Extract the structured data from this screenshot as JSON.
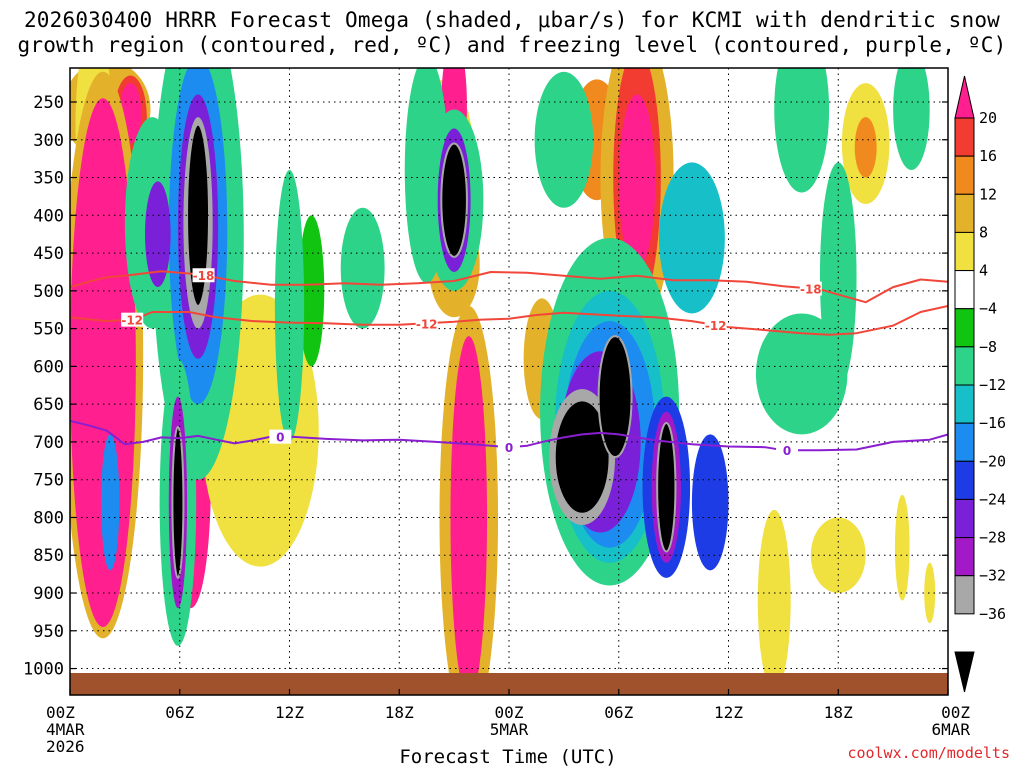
{
  "chart_data": {
    "type": "heatmap",
    "title_line1": "2026030400 HRRR Forecast Omega (shaded, μbar/s) for KCMI with dendritic snow",
    "title_line2": "growth region (contoured, red, ºC) and freezing level (contoured, purple, ºC)",
    "xlabel": "Forecast Time (UTC)",
    "ylabel": "",
    "x_range_hours": [
      0,
      48
    ],
    "y_range_hpa": [
      205,
      1035
    ],
    "x_ticks": [
      {
        "h": 0,
        "label": "00Z",
        "sub1": "4MAR",
        "sub2": "2026"
      },
      {
        "h": 6,
        "label": "06Z",
        "sub1": "",
        "sub2": ""
      },
      {
        "h": 12,
        "label": "12Z",
        "sub1": "",
        "sub2": ""
      },
      {
        "h": 18,
        "label": "18Z",
        "sub1": "",
        "sub2": ""
      },
      {
        "h": 24,
        "label": "00Z",
        "sub1": "5MAR",
        "sub2": ""
      },
      {
        "h": 30,
        "label": "06Z",
        "sub1": "",
        "sub2": ""
      },
      {
        "h": 36,
        "label": "12Z",
        "sub1": "",
        "sub2": ""
      },
      {
        "h": 42,
        "label": "18Z",
        "sub1": "",
        "sub2": ""
      },
      {
        "h": 48,
        "label": "00Z",
        "sub1": "6MAR",
        "sub2": ""
      }
    ],
    "y_ticks": [
      250,
      300,
      350,
      400,
      450,
      500,
      550,
      600,
      650,
      700,
      750,
      800,
      850,
      900,
      950,
      1000
    ],
    "colorbar": {
      "labels": [
        "20",
        "16",
        "12",
        "8",
        "4",
        "−4",
        "−8",
        "−12",
        "−16",
        "−20",
        "−24",
        "−28",
        "−32",
        "−36"
      ],
      "colors": [
        "#ff1f8e",
        "#f23c32",
        "#f08a1e",
        "#e3b12a",
        "#f0e040",
        "#ffffff",
        "#11c411",
        "#2ed38a",
        "#17c0c8",
        "#1d8cf0",
        "#1d3ce6",
        "#7a20d8",
        "#a21ac8",
        "#a8a8a8",
        "#000000"
      ]
    },
    "series": [
      {
        "name": "-18 °C isotherm",
        "color": "#f0473a",
        "points": [
          [
            0,
            495
          ],
          [
            1,
            488
          ],
          [
            2,
            482
          ],
          [
            3,
            480
          ],
          [
            5,
            474
          ],
          [
            7,
            478
          ],
          [
            9,
            487
          ],
          [
            11,
            492
          ],
          [
            13,
            492
          ],
          [
            15,
            490
          ],
          [
            17,
            492
          ],
          [
            19,
            490
          ],
          [
            21,
            487
          ],
          [
            23,
            475
          ],
          [
            25,
            476
          ],
          [
            27,
            480
          ],
          [
            29,
            484
          ],
          [
            31,
            480
          ],
          [
            33,
            486
          ],
          [
            35,
            486
          ],
          [
            37,
            488
          ],
          [
            39,
            494
          ],
          [
            41,
            498
          ],
          [
            42,
            505
          ],
          [
            43.5,
            515
          ],
          [
            45,
            495
          ],
          [
            46.5,
            485
          ],
          [
            48,
            488
          ]
        ],
        "labels": [
          {
            "h": 7.3,
            "text": "-18"
          },
          {
            "h": 40.5,
            "text": "-18"
          }
        ]
      },
      {
        "name": "-12 °C isotherm",
        "color": "#f0473a",
        "points": [
          [
            0,
            535
          ],
          [
            2,
            540
          ],
          [
            3.5,
            538
          ],
          [
            4.5,
            528
          ],
          [
            6.5,
            528
          ],
          [
            8,
            535
          ],
          [
            10,
            540
          ],
          [
            12,
            542
          ],
          [
            14,
            543
          ],
          [
            16,
            545
          ],
          [
            18,
            545
          ],
          [
            21,
            541
          ],
          [
            22.5,
            538
          ],
          [
            24,
            537
          ],
          [
            25.5,
            532
          ],
          [
            27,
            529
          ],
          [
            28.5,
            531
          ],
          [
            30,
            533
          ],
          [
            32,
            535
          ],
          [
            34,
            540
          ],
          [
            36,
            548
          ],
          [
            38,
            552
          ],
          [
            40,
            556
          ],
          [
            41.5,
            558
          ],
          [
            43,
            556
          ],
          [
            45,
            546
          ],
          [
            46.5,
            528
          ],
          [
            48,
            520
          ]
        ],
        "labels": [
          {
            "h": 3.4,
            "text": "-12"
          },
          {
            "h": 19.5,
            "text": "-12"
          },
          {
            "h": 35.3,
            "text": "-12"
          }
        ]
      },
      {
        "name": "0 °C isotherm (freezing level)",
        "color": "#8a1ed0",
        "points": [
          [
            0,
            672
          ],
          [
            1,
            678
          ],
          [
            2,
            685
          ],
          [
            3,
            703
          ],
          [
            4,
            700
          ],
          [
            5,
            694
          ],
          [
            6,
            695
          ],
          [
            7,
            692
          ],
          [
            8,
            697
          ],
          [
            9,
            702
          ],
          [
            10,
            698
          ],
          [
            11,
            693
          ],
          [
            12,
            693
          ],
          [
            14,
            696
          ],
          [
            16,
            698
          ],
          [
            18,
            697
          ],
          [
            20,
            700
          ],
          [
            22,
            703
          ],
          [
            24,
            707
          ],
          [
            25,
            705
          ],
          [
            26,
            699
          ],
          [
            27,
            694
          ],
          [
            28,
            690
          ],
          [
            29,
            688
          ],
          [
            30,
            690
          ],
          [
            31,
            694
          ],
          [
            32,
            698
          ],
          [
            34,
            703
          ],
          [
            36,
            706
          ],
          [
            38,
            707
          ],
          [
            39,
            711
          ],
          [
            41,
            711
          ],
          [
            43,
            710
          ],
          [
            45,
            700
          ],
          [
            47,
            697
          ],
          [
            48,
            690
          ]
        ],
        "labels": [
          {
            "h": 11.5,
            "text": "0"
          },
          {
            "h": 24,
            "text": "0"
          },
          {
            "h": 39.2,
            "text": "0"
          }
        ]
      }
    ],
    "omega_cells": [
      {
        "h": 2.0,
        "p": 260,
        "rx": 2.4,
        "rp": 65,
        "v": 8
      },
      {
        "h": 3.3,
        "p": 270,
        "rx": 0.9,
        "rp": 55,
        "v": 16
      },
      {
        "h": 3.3,
        "p": 265,
        "rx": 0.6,
        "rp": 40,
        "v": 20
      },
      {
        "h": 1.3,
        "p": 280,
        "rx": 1.0,
        "rp": 130,
        "v": 4
      },
      {
        "h": 1.8,
        "p": 585,
        "rx": 2.2,
        "rp": 375,
        "v": 8
      },
      {
        "h": 1.8,
        "p": 595,
        "rx": 1.8,
        "rp": 350,
        "v": 20
      },
      {
        "h": 6.6,
        "p": 755,
        "rx": 1.1,
        "rp": 165,
        "v": 20
      },
      {
        "h": 10.4,
        "p": 685,
        "rx": 3.2,
        "rp": 180,
        "v": 4
      },
      {
        "h": 13.2,
        "p": 500,
        "rx": 0.7,
        "rp": 100,
        "v": -4
      },
      {
        "h": 20.5,
        "p": 330,
        "rx": 1.6,
        "rp": 110,
        "v": 4
      },
      {
        "h": 21.0,
        "p": 465,
        "rx": 1.4,
        "rp": 70,
        "v": 8
      },
      {
        "h": 21.8,
        "p": 800,
        "rx": 1.6,
        "rp": 280,
        "v": 8
      },
      {
        "h": 21.8,
        "p": 800,
        "rx": 1.0,
        "rp": 240,
        "v": 20
      },
      {
        "h": 21.0,
        "p": 255,
        "rx": 0.7,
        "rp": 90,
        "v": 20
      },
      {
        "h": 25.8,
        "p": 590,
        "rx": 1.0,
        "rp": 80,
        "v": 8
      },
      {
        "h": 28.8,
        "p": 300,
        "rx": 1.4,
        "rp": 80,
        "v": 12
      },
      {
        "h": 31.0,
        "p": 350,
        "rx": 2.0,
        "rp": 200,
        "v": 8
      },
      {
        "h": 31.0,
        "p": 350,
        "rx": 1.3,
        "rp": 170,
        "v": 16
      },
      {
        "h": 31.0,
        "p": 355,
        "rx": 1.0,
        "rp": 115,
        "v": 20
      },
      {
        "h": 38.5,
        "p": 910,
        "rx": 0.9,
        "rp": 120,
        "v": 4
      },
      {
        "h": 42.0,
        "p": 850,
        "rx": 1.5,
        "rp": 50,
        "v": 4
      },
      {
        "h": 43.5,
        "p": 305,
        "rx": 1.3,
        "rp": 80,
        "v": 4
      },
      {
        "h": 43.5,
        "p": 310,
        "rx": 0.6,
        "rp": 40,
        "v": 12
      },
      {
        "h": 45.5,
        "p": 840,
        "rx": 0.4,
        "rp": 70,
        "v": 4
      },
      {
        "h": 47.0,
        "p": 900,
        "rx": 0.3,
        "rp": 40,
        "v": 4
      },
      {
        "h": 4.5,
        "p": 410,
        "rx": 1.5,
        "rp": 140,
        "v": -8
      },
      {
        "h": 7.0,
        "p": 430,
        "rx": 2.5,
        "rp": 320,
        "v": -8
      },
      {
        "h": 7.0,
        "p": 420,
        "rx": 1.6,
        "rp": 230,
        "v": -16
      },
      {
        "h": 7.0,
        "p": 415,
        "rx": 1.1,
        "rp": 175,
        "v": -24
      },
      {
        "h": 7.0,
        "p": 410,
        "rx": 0.8,
        "rp": 140,
        "v": -32
      },
      {
        "h": 7.0,
        "p": 400,
        "rx": 0.6,
        "rp": 120,
        "v": -36
      },
      {
        "h": 4.8,
        "p": 425,
        "rx": 0.7,
        "rp": 70,
        "v": -24
      },
      {
        "h": 5.9,
        "p": 780,
        "rx": 1.0,
        "rp": 190,
        "v": -8
      },
      {
        "h": 5.9,
        "p": 780,
        "rx": 0.5,
        "rp": 140,
        "v": -28
      },
      {
        "h": 5.9,
        "p": 780,
        "rx": 0.3,
        "rp": 100,
        "v": -36
      },
      {
        "h": 2.2,
        "p": 780,
        "rx": 0.5,
        "rp": 90,
        "v": -16
      },
      {
        "h": 12.0,
        "p": 520,
        "rx": 0.8,
        "rp": 180,
        "v": -8
      },
      {
        "h": 16.0,
        "p": 470,
        "rx": 1.2,
        "rp": 80,
        "v": -8
      },
      {
        "h": 19.5,
        "p": 340,
        "rx": 1.2,
        "rp": 150,
        "v": -8
      },
      {
        "h": 21.0,
        "p": 380,
        "rx": 1.6,
        "rp": 120,
        "v": -8
      },
      {
        "h": 21.0,
        "p": 380,
        "rx": 0.9,
        "rp": 95,
        "v": -24
      },
      {
        "h": 21.0,
        "p": 380,
        "rx": 0.7,
        "rp": 75,
        "v": -36
      },
      {
        "h": 27.0,
        "p": 300,
        "rx": 1.6,
        "rp": 90,
        "v": -8
      },
      {
        "h": 29.5,
        "p": 660,
        "rx": 3.8,
        "rp": 230,
        "v": -8
      },
      {
        "h": 29.5,
        "p": 680,
        "rx": 3.0,
        "rp": 180,
        "v": -12
      },
      {
        "h": 29.5,
        "p": 690,
        "rx": 2.5,
        "rp": 150,
        "v": -16
      },
      {
        "h": 29.0,
        "p": 700,
        "rx": 2.2,
        "rp": 120,
        "v": -24
      },
      {
        "h": 28.0,
        "p": 720,
        "rx": 1.8,
        "rp": 90,
        "v": -32
      },
      {
        "h": 28.0,
        "p": 720,
        "rx": 1.5,
        "rp": 75,
        "v": -36
      },
      {
        "h": 29.8,
        "p": 640,
        "rx": 0.9,
        "rp": 80,
        "v": -36
      },
      {
        "h": 32.6,
        "p": 760,
        "rx": 1.3,
        "rp": 120,
        "v": -20
      },
      {
        "h": 32.6,
        "p": 760,
        "rx": 0.8,
        "rp": 100,
        "v": -28
      },
      {
        "h": 32.6,
        "p": 760,
        "rx": 0.5,
        "rp": 85,
        "v": -36
      },
      {
        "h": 35.0,
        "p": 780,
        "rx": 1.0,
        "rp": 90,
        "v": -20
      },
      {
        "h": 34.0,
        "p": 430,
        "rx": 1.8,
        "rp": 100,
        "v": -12
      },
      {
        "h": 40.0,
        "p": 260,
        "rx": 1.5,
        "rp": 110,
        "v": -8
      },
      {
        "h": 42.0,
        "p": 480,
        "rx": 1.0,
        "rp": 150,
        "v": -8
      },
      {
        "h": 40.0,
        "p": 610,
        "rx": 2.5,
        "rp": 80,
        "v": -8
      },
      {
        "h": 46.0,
        "p": 260,
        "rx": 1.0,
        "rp": 80,
        "v": -8
      }
    ]
  },
  "credit": "coolwx.com/modelts"
}
